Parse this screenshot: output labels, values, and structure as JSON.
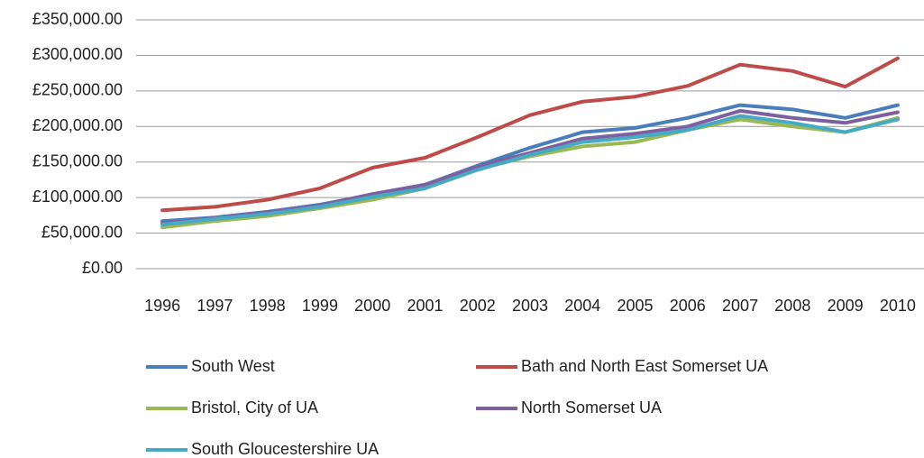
{
  "chart_data": {
    "type": "line",
    "categories": [
      "1996",
      "1997",
      "1998",
      "1999",
      "2000",
      "2001",
      "2002",
      "2003",
      "2004",
      "2005",
      "2006",
      "2007",
      "2008",
      "2009",
      "2010"
    ],
    "series": [
      {
        "name": "South West",
        "color": "#4a7ebb",
        "values": [
          67000,
          72000,
          80000,
          90000,
          104000,
          118000,
          145000,
          170000,
          192000,
          198000,
          212000,
          230000,
          224000,
          212000,
          230000
        ]
      },
      {
        "name": "Bath and North East Somerset UA",
        "color": "#be4b48",
        "values": [
          82000,
          87000,
          97000,
          113000,
          142000,
          156000,
          185000,
          216000,
          235000,
          242000,
          257000,
          287000,
          278000,
          256000,
          296000
        ]
      },
      {
        "name": "Bristol, City of UA",
        "color": "#98b954",
        "values": [
          58000,
          67000,
          74000,
          85000,
          97000,
          113000,
          140000,
          158000,
          172000,
          178000,
          195000,
          210000,
          200000,
          192000,
          212000
        ]
      },
      {
        "name": "North Somerset UA",
        "color": "#7d60a0",
        "values": [
          64000,
          71000,
          79000,
          89000,
          105000,
          118000,
          143000,
          163000,
          183000,
          190000,
          200000,
          222000,
          212000,
          205000,
          220000
        ]
      },
      {
        "name": "South Gloucestershire UA",
        "color": "#46aac5",
        "values": [
          62000,
          70000,
          77000,
          87000,
          101000,
          113000,
          139000,
          160000,
          178000,
          185000,
          195000,
          215000,
          205000,
          192000,
          210000
        ]
      }
    ],
    "ylim": [
      0,
      350000
    ],
    "yticks": [
      {
        "value": 0,
        "label": "£0.00"
      },
      {
        "value": 50000,
        "label": "£50,000.00"
      },
      {
        "value": 100000,
        "label": "£100,000.00"
      },
      {
        "value": 150000,
        "label": "£150,000.00"
      },
      {
        "value": 200000,
        "label": "£200,000.00"
      },
      {
        "value": 250000,
        "label": "£250,000.00"
      },
      {
        "value": 300000,
        "label": "£300,000.00"
      },
      {
        "value": 350000,
        "label": "£350,000.00"
      }
    ],
    "grid": true,
    "legend": "bottom"
  }
}
